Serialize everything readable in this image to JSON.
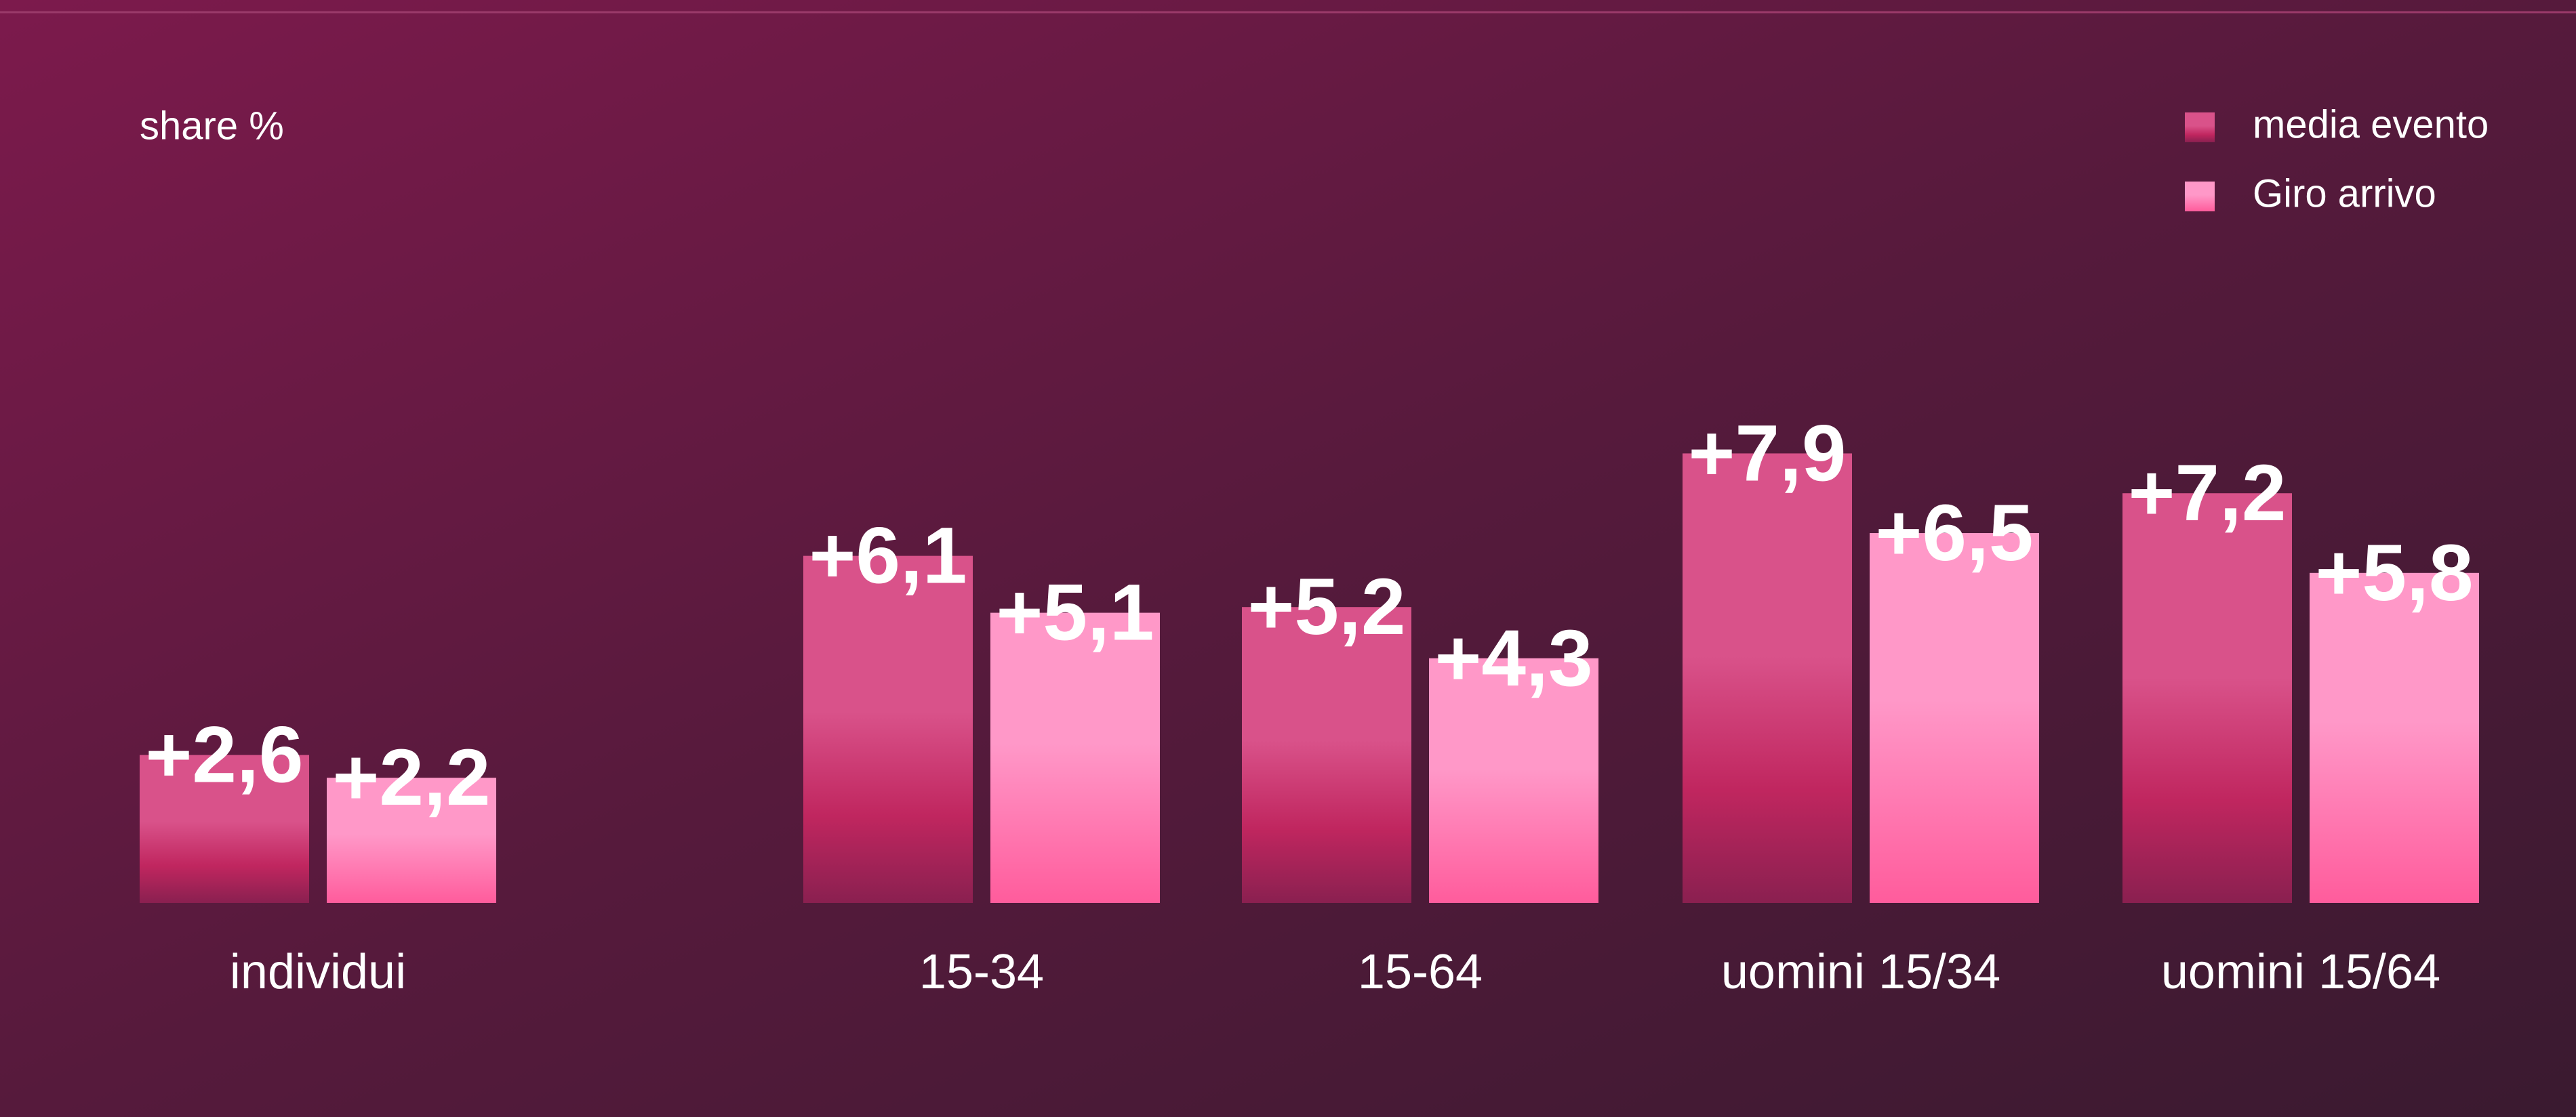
{
  "chart_data": {
    "type": "bar",
    "subtitle": "share %",
    "categories": [
      "individui",
      "15-34",
      "15-64",
      "uomini 15/34",
      "uomini 15/64"
    ],
    "series": [
      {
        "name": "media evento",
        "color": "#d9528a",
        "values": [
          2.6,
          6.1,
          5.2,
          7.9,
          7.2
        ],
        "value_labels": [
          "+2,6",
          "+6,1",
          "+5,2",
          "+7,9",
          "+7,2"
        ]
      },
      {
        "name": "Giro arrivo",
        "color": "#ff98c8",
        "values": [
          2.2,
          5.1,
          4.3,
          6.5,
          5.8
        ],
        "value_labels": [
          "+2,2",
          "+5,1",
          "+4,3",
          "+6,5",
          "+5,8"
        ]
      }
    ],
    "legend": "top-right"
  }
}
